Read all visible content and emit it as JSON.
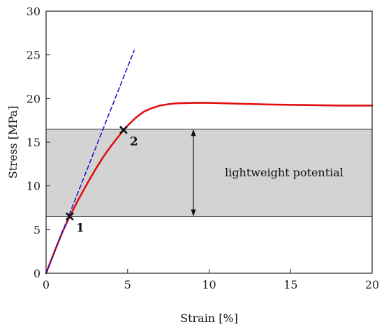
{
  "chart_data": {
    "type": "line",
    "title": "",
    "xlabel": "Strain [%]",
    "ylabel": "Stress [MPa]",
    "xlim": [
      0,
      20
    ],
    "ylim": [
      0,
      30
    ],
    "x_ticks": [
      0,
      5,
      10,
      15,
      20
    ],
    "y_ticks": [
      0,
      5,
      10,
      15,
      20,
      25,
      30
    ],
    "grid": false,
    "series": [
      {
        "style": "solid",
        "color": "#e01010",
        "x": [
          0,
          0.5,
          1.0,
          1.45,
          2.0,
          2.5,
          3.0,
          3.5,
          4.0,
          4.5,
          4.75,
          5.0,
          5.5,
          6.0,
          6.5,
          7.0,
          7.5,
          8.0,
          9.0,
          10.0,
          11.0,
          12.0,
          14.0,
          16.0,
          18.0,
          20.0
        ],
        "y": [
          0,
          2.4,
          4.7,
          6.5,
          8.5,
          10.2,
          11.8,
          13.3,
          14.6,
          15.8,
          16.4,
          16.9,
          17.8,
          18.5,
          18.9,
          19.2,
          19.35,
          19.45,
          19.5,
          19.5,
          19.45,
          19.4,
          19.3,
          19.25,
          19.2,
          19.2
        ]
      },
      {
        "style": "dashed",
        "color": "#1a1ad0",
        "x": [
          0,
          5.4
        ],
        "y": [
          0,
          25.5
        ]
      }
    ],
    "points": [
      {
        "label": "1",
        "x": 1.45,
        "y": 6.5
      },
      {
        "label": "2",
        "x": 4.75,
        "y": 16.4
      }
    ],
    "band": {
      "y_from": 6.5,
      "y_to": 16.5,
      "color": "#d3d3d3"
    },
    "annotations": [
      {
        "text": "lightweight potential"
      }
    ]
  }
}
